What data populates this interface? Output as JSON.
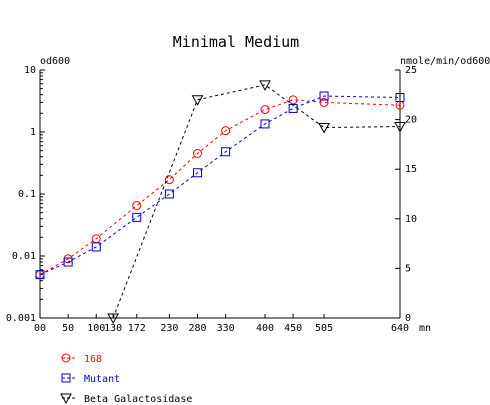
{
  "chart_data": {
    "type": "line",
    "title": "Minimal Medium",
    "left_axis_label": "od600",
    "right_axis_label": "nmole/min/od600",
    "x_unit_label": "mn",
    "x_ticks": [
      0,
      50,
      100,
      130,
      172,
      230,
      280,
      330,
      400,
      450,
      505,
      640
    ],
    "x_tick_labels": [
      "00",
      "50",
      "100",
      "130",
      "172",
      "230",
      "280",
      "330",
      "400",
      "450",
      "505",
      "640"
    ],
    "xlim": [
      0,
      640
    ],
    "left_scale": "log",
    "ylim_left": [
      0.001,
      10
    ],
    "y_left_ticks": [
      0.001,
      0.01,
      0.1,
      1,
      10
    ],
    "y_left_tick_labels": [
      "0.001",
      "0.01",
      "0.1",
      "1",
      "10"
    ],
    "ylim_right": [
      0,
      25
    ],
    "y_right_ticks": [
      0,
      5,
      10,
      15,
      20,
      25
    ],
    "y_right_tick_labels": [
      "0",
      "5",
      "10",
      "15",
      "20",
      "25"
    ],
    "grid": false,
    "legend_position": "bottom-left",
    "series": [
      {
        "name": "168",
        "color": "#ff0000",
        "marker": "circle",
        "axis": "left",
        "x": [
          0,
          50,
          100,
          172,
          230,
          280,
          330,
          400,
          450,
          505,
          640
        ],
        "y": [
          0.005,
          0.009,
          0.019,
          0.065,
          0.17,
          0.45,
          1.05,
          2.3,
          3.3,
          3.0,
          2.7
        ]
      },
      {
        "name": "Mutant",
        "color": "#0000cc",
        "marker": "square",
        "axis": "left",
        "x": [
          0,
          50,
          100,
          172,
          230,
          280,
          330,
          400,
          450,
          505,
          640
        ],
        "y": [
          0.005,
          0.008,
          0.014,
          0.042,
          0.1,
          0.22,
          0.48,
          1.35,
          2.4,
          3.8,
          3.6
        ]
      },
      {
        "name": "Beta Galactosidase",
        "color": "#000000",
        "marker": "triangle-down",
        "axis": "right",
        "x": [
          130,
          280,
          400,
          505,
          640
        ],
        "y": [
          0,
          22,
          23.5,
          19.2,
          19.3
        ]
      }
    ]
  }
}
